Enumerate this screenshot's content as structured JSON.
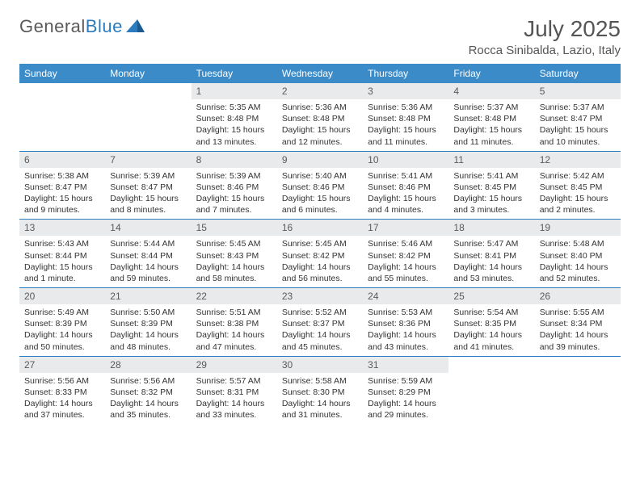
{
  "brand": {
    "part1": "General",
    "part2": "Blue"
  },
  "title": "July 2025",
  "location": "Rocca Sinibalda, Lazio, Italy",
  "colors": {
    "header_bg": "#3b8bc9",
    "header_text": "#ffffff",
    "row_divider": "#2b7bbf",
    "daynum_bg": "#e9eaeb",
    "text_muted": "#5a5a5a",
    "body_text": "#333333",
    "page_bg": "#ffffff"
  },
  "days_of_week": [
    "Sunday",
    "Monday",
    "Tuesday",
    "Wednesday",
    "Thursday",
    "Friday",
    "Saturday"
  ],
  "weeks": [
    [
      {
        "n": "",
        "sunrise": "",
        "sunset": "",
        "daylight": ""
      },
      {
        "n": "",
        "sunrise": "",
        "sunset": "",
        "daylight": ""
      },
      {
        "n": "1",
        "sunrise": "Sunrise: 5:35 AM",
        "sunset": "Sunset: 8:48 PM",
        "daylight": "Daylight: 15 hours and 13 minutes."
      },
      {
        "n": "2",
        "sunrise": "Sunrise: 5:36 AM",
        "sunset": "Sunset: 8:48 PM",
        "daylight": "Daylight: 15 hours and 12 minutes."
      },
      {
        "n": "3",
        "sunrise": "Sunrise: 5:36 AM",
        "sunset": "Sunset: 8:48 PM",
        "daylight": "Daylight: 15 hours and 11 minutes."
      },
      {
        "n": "4",
        "sunrise": "Sunrise: 5:37 AM",
        "sunset": "Sunset: 8:48 PM",
        "daylight": "Daylight: 15 hours and 11 minutes."
      },
      {
        "n": "5",
        "sunrise": "Sunrise: 5:37 AM",
        "sunset": "Sunset: 8:47 PM",
        "daylight": "Daylight: 15 hours and 10 minutes."
      }
    ],
    [
      {
        "n": "6",
        "sunrise": "Sunrise: 5:38 AM",
        "sunset": "Sunset: 8:47 PM",
        "daylight": "Daylight: 15 hours and 9 minutes."
      },
      {
        "n": "7",
        "sunrise": "Sunrise: 5:39 AM",
        "sunset": "Sunset: 8:47 PM",
        "daylight": "Daylight: 15 hours and 8 minutes."
      },
      {
        "n": "8",
        "sunrise": "Sunrise: 5:39 AM",
        "sunset": "Sunset: 8:46 PM",
        "daylight": "Daylight: 15 hours and 7 minutes."
      },
      {
        "n": "9",
        "sunrise": "Sunrise: 5:40 AM",
        "sunset": "Sunset: 8:46 PM",
        "daylight": "Daylight: 15 hours and 6 minutes."
      },
      {
        "n": "10",
        "sunrise": "Sunrise: 5:41 AM",
        "sunset": "Sunset: 8:46 PM",
        "daylight": "Daylight: 15 hours and 4 minutes."
      },
      {
        "n": "11",
        "sunrise": "Sunrise: 5:41 AM",
        "sunset": "Sunset: 8:45 PM",
        "daylight": "Daylight: 15 hours and 3 minutes."
      },
      {
        "n": "12",
        "sunrise": "Sunrise: 5:42 AM",
        "sunset": "Sunset: 8:45 PM",
        "daylight": "Daylight: 15 hours and 2 minutes."
      }
    ],
    [
      {
        "n": "13",
        "sunrise": "Sunrise: 5:43 AM",
        "sunset": "Sunset: 8:44 PM",
        "daylight": "Daylight: 15 hours and 1 minute."
      },
      {
        "n": "14",
        "sunrise": "Sunrise: 5:44 AM",
        "sunset": "Sunset: 8:44 PM",
        "daylight": "Daylight: 14 hours and 59 minutes."
      },
      {
        "n": "15",
        "sunrise": "Sunrise: 5:45 AM",
        "sunset": "Sunset: 8:43 PM",
        "daylight": "Daylight: 14 hours and 58 minutes."
      },
      {
        "n": "16",
        "sunrise": "Sunrise: 5:45 AM",
        "sunset": "Sunset: 8:42 PM",
        "daylight": "Daylight: 14 hours and 56 minutes."
      },
      {
        "n": "17",
        "sunrise": "Sunrise: 5:46 AM",
        "sunset": "Sunset: 8:42 PM",
        "daylight": "Daylight: 14 hours and 55 minutes."
      },
      {
        "n": "18",
        "sunrise": "Sunrise: 5:47 AM",
        "sunset": "Sunset: 8:41 PM",
        "daylight": "Daylight: 14 hours and 53 minutes."
      },
      {
        "n": "19",
        "sunrise": "Sunrise: 5:48 AM",
        "sunset": "Sunset: 8:40 PM",
        "daylight": "Daylight: 14 hours and 52 minutes."
      }
    ],
    [
      {
        "n": "20",
        "sunrise": "Sunrise: 5:49 AM",
        "sunset": "Sunset: 8:39 PM",
        "daylight": "Daylight: 14 hours and 50 minutes."
      },
      {
        "n": "21",
        "sunrise": "Sunrise: 5:50 AM",
        "sunset": "Sunset: 8:39 PM",
        "daylight": "Daylight: 14 hours and 48 minutes."
      },
      {
        "n": "22",
        "sunrise": "Sunrise: 5:51 AM",
        "sunset": "Sunset: 8:38 PM",
        "daylight": "Daylight: 14 hours and 47 minutes."
      },
      {
        "n": "23",
        "sunrise": "Sunrise: 5:52 AM",
        "sunset": "Sunset: 8:37 PM",
        "daylight": "Daylight: 14 hours and 45 minutes."
      },
      {
        "n": "24",
        "sunrise": "Sunrise: 5:53 AM",
        "sunset": "Sunset: 8:36 PM",
        "daylight": "Daylight: 14 hours and 43 minutes."
      },
      {
        "n": "25",
        "sunrise": "Sunrise: 5:54 AM",
        "sunset": "Sunset: 8:35 PM",
        "daylight": "Daylight: 14 hours and 41 minutes."
      },
      {
        "n": "26",
        "sunrise": "Sunrise: 5:55 AM",
        "sunset": "Sunset: 8:34 PM",
        "daylight": "Daylight: 14 hours and 39 minutes."
      }
    ],
    [
      {
        "n": "27",
        "sunrise": "Sunrise: 5:56 AM",
        "sunset": "Sunset: 8:33 PM",
        "daylight": "Daylight: 14 hours and 37 minutes."
      },
      {
        "n": "28",
        "sunrise": "Sunrise: 5:56 AM",
        "sunset": "Sunset: 8:32 PM",
        "daylight": "Daylight: 14 hours and 35 minutes."
      },
      {
        "n": "29",
        "sunrise": "Sunrise: 5:57 AM",
        "sunset": "Sunset: 8:31 PM",
        "daylight": "Daylight: 14 hours and 33 minutes."
      },
      {
        "n": "30",
        "sunrise": "Sunrise: 5:58 AM",
        "sunset": "Sunset: 8:30 PM",
        "daylight": "Daylight: 14 hours and 31 minutes."
      },
      {
        "n": "31",
        "sunrise": "Sunrise: 5:59 AM",
        "sunset": "Sunset: 8:29 PM",
        "daylight": "Daylight: 14 hours and 29 minutes."
      },
      {
        "n": "",
        "sunrise": "",
        "sunset": "",
        "daylight": ""
      },
      {
        "n": "",
        "sunrise": "",
        "sunset": "",
        "daylight": ""
      }
    ]
  ]
}
